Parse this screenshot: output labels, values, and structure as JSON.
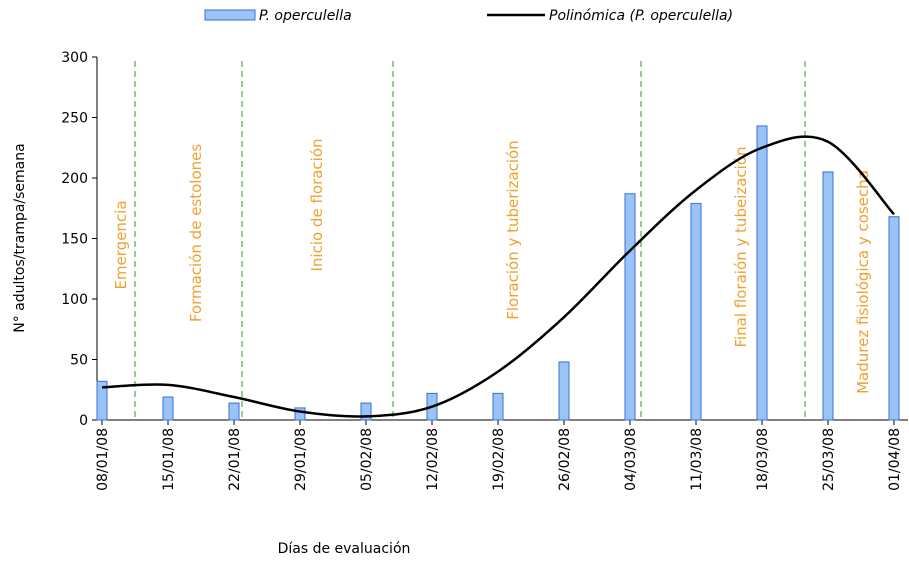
{
  "chart_data": {
    "type": "bar",
    "x_label": "Días de evaluación",
    "y_label": "N° adultos/trampa/semana",
    "categories": [
      "08/01/08",
      "15/01/08",
      "22/01/08",
      "29/01/08",
      "05/02/08",
      "12/02/08",
      "19/02/08",
      "26/02/08",
      "04/03/08",
      "11/03/08",
      "18/03/08",
      "25/03/08",
      "01/04/08"
    ],
    "series": [
      {
        "name": "P. operculella",
        "type": "bar",
        "color": "#99c4f5",
        "values": [
          32,
          19,
          14,
          10,
          14,
          22,
          22,
          48,
          187,
          179,
          243,
          205,
          168
        ]
      },
      {
        "name": "Polinómica (P. operculella)",
        "type": "line",
        "color": "#000000",
        "values": [
          27,
          29,
          19,
          7,
          3,
          11,
          40,
          85,
          140,
          190,
          225,
          230,
          170
        ]
      }
    ],
    "annotations": [
      "Emergencia",
      "Formación de estolones",
      "Inicio de floración",
      "Floración y tuberización",
      "Final floraión y tubeización",
      "Madurez fisiológica y cosecha"
    ],
    "ylim": [
      0,
      300
    ],
    "yticks": [
      0,
      50,
      100,
      150,
      200,
      250,
      300
    ]
  }
}
